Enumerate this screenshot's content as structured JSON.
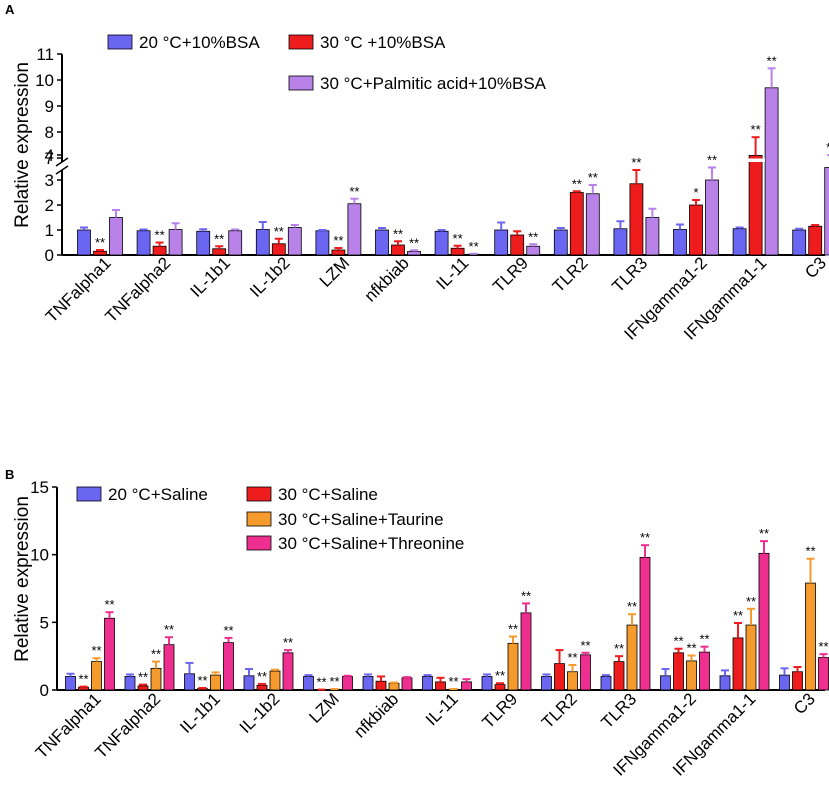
{
  "colors": {
    "blue": "#6a66f2",
    "red": "#ee1c1c",
    "purple": "#b882e8",
    "orange": "#f59a2c",
    "pink": "#ef2f8f"
  },
  "chart_data": [
    {
      "type": "bar",
      "panel": "A",
      "ylabel": "Relative expression",
      "xlabel": "",
      "y_axis_break": {
        "lower_range": [
          0,
          4
        ],
        "upper_range": [
          7,
          11
        ]
      },
      "yticks_lower": [
        "0",
        "1",
        "2",
        "3",
        "4"
      ],
      "yticks_upper": [
        "7",
        "8",
        "9",
        "10",
        "11"
      ],
      "categories": [
        "TNFalpha1",
        "TNFalpha2",
        "IL-1b1",
        "IL-1b2",
        "LZM",
        "nfkbiab",
        "IL-11",
        "TLR9",
        "TLR2",
        "TLR3",
        "IFNgamma1-2",
        "IFNgamma1-1",
        "C3"
      ],
      "legend": {
        "placement": "top-left",
        "entries": [
          "20 °C+10%BSA",
          "30 °C +10%BSA",
          "30 °C+Palmitic acid+10%BSA"
        ]
      },
      "series": [
        {
          "name": "20 °C+10%BSA",
          "color_key": "blue",
          "values": [
            1.0,
            0.97,
            0.95,
            1.02,
            0.97,
            1.0,
            0.95,
            1.0,
            1.0,
            1.05,
            1.02,
            1.05,
            1.0
          ],
          "errors": [
            0.1,
            0.05,
            0.08,
            0.3,
            0.03,
            0.08,
            0.05,
            0.3,
            0.08,
            0.3,
            0.2,
            0.05,
            0.05
          ],
          "labels": [
            "",
            "",
            "",
            "",
            "",
            "",
            "",
            "",
            "",
            "",
            "",
            "",
            ""
          ]
        },
        {
          "name": "30 °C +10%BSA",
          "color_key": "red",
          "values": [
            0.15,
            0.35,
            0.25,
            0.45,
            0.2,
            0.4,
            0.27,
            0.8,
            2.5,
            2.85,
            2.0,
            7.1,
            1.15
          ],
          "errors": [
            0.05,
            0.15,
            0.1,
            0.2,
            0.08,
            0.15,
            0.1,
            0.15,
            0.05,
            0.55,
            0.2,
            0.7,
            0.05
          ],
          "labels": [
            "**",
            "**",
            "**",
            "**",
            "**",
            "**",
            "**",
            "",
            "**",
            "**",
            "*",
            "**",
            ""
          ]
        },
        {
          "name": "30 °C+Palmitic acid+10%BSA",
          "color_key": "purple",
          "values": [
            1.5,
            1.02,
            0.97,
            1.1,
            2.05,
            0.14,
            0.03,
            0.35,
            2.45,
            1.5,
            3.0,
            9.7,
            3.5
          ],
          "errors": [
            0.3,
            0.25,
            0.05,
            0.1,
            0.2,
            0.05,
            0.02,
            0.08,
            0.35,
            0.35,
            0.5,
            0.75,
            0.5
          ],
          "labels": [
            "",
            "",
            "",
            "",
            "**",
            "**",
            "**",
            "**",
            "**",
            "",
            "**",
            "**",
            "**"
          ]
        }
      ]
    },
    {
      "type": "bar",
      "panel": "B",
      "ylabel": "Relative expression",
      "xlabel": "",
      "ylim": [
        0,
        15
      ],
      "yticks": [
        "0",
        "5",
        "10",
        "15"
      ],
      "categories": [
        "TNFalpha1",
        "TNFalpha2",
        "IL-1b1",
        "IL-1b2",
        "LZM",
        "nfkbiab",
        "IL-11",
        "TLR9",
        "TLR2",
        "TLR3",
        "IFNgamma1-2",
        "IFNgamma1-1",
        "C3"
      ],
      "legend": {
        "placement": "top-left",
        "entries": [
          "20 °C+Saline",
          "30 °C+Saline",
          "30 °C+Saline+Taurine",
          "30 °C+Saline+Threonine"
        ]
      },
      "series": [
        {
          "name": "20 °C+Saline",
          "color_key": "blue",
          "values": [
            1.0,
            1.0,
            1.2,
            1.05,
            1.0,
            1.0,
            1.0,
            1.0,
            1.0,
            1.0,
            1.05,
            1.05,
            1.1
          ],
          "errors": [
            0.2,
            0.15,
            0.8,
            0.5,
            0.1,
            0.15,
            0.1,
            0.15,
            0.15,
            0.1,
            0.5,
            0.4,
            0.5
          ],
          "labels": [
            "",
            "",
            "",
            "",
            "",
            "",
            "",
            "",
            "",
            "",
            "",
            "",
            ""
          ]
        },
        {
          "name": "30 °C+Saline",
          "color_key": "red",
          "values": [
            0.2,
            0.3,
            0.1,
            0.35,
            0.02,
            0.65,
            0.6,
            0.4,
            1.95,
            2.1,
            2.75,
            3.85,
            1.35
          ],
          "errors": [
            0.05,
            0.1,
            0.05,
            0.1,
            0.01,
            0.35,
            0.3,
            0.1,
            1.0,
            0.4,
            0.3,
            1.1,
            0.35
          ],
          "labels": [
            "**",
            "**",
            "**",
            "**",
            "**",
            "",
            "",
            "**",
            "",
            "**",
            "**",
            "**",
            ""
          ]
        },
        {
          "name": "30 °C+Saline+Taurine",
          "color_key": "orange",
          "values": [
            2.1,
            1.6,
            1.1,
            1.4,
            0.05,
            0.5,
            0.05,
            3.45,
            1.35,
            4.8,
            2.15,
            4.8,
            7.9
          ],
          "errors": [
            0.25,
            0.5,
            0.2,
            0.1,
            0.02,
            0.05,
            0.02,
            0.5,
            0.5,
            0.8,
            0.4,
            1.2,
            1.8
          ],
          "labels": [
            "**",
            "**",
            "",
            "",
            "**",
            "",
            "**",
            "**",
            "**",
            "**",
            "**",
            "**",
            "**"
          ]
        },
        {
          "name": "30 °C+Saline+Threonine",
          "color_key": "pink",
          "values": [
            5.3,
            3.35,
            3.5,
            2.75,
            1.0,
            0.9,
            0.6,
            5.7,
            2.6,
            9.8,
            2.8,
            10.1,
            2.4
          ],
          "errors": [
            0.45,
            0.55,
            0.35,
            0.2,
            0.05,
            0.05,
            0.2,
            0.7,
            0.15,
            0.9,
            0.4,
            0.9,
            0.25
          ],
          "labels": [
            "**",
            "**",
            "**",
            "**",
            "",
            "",
            "",
            "**",
            "**",
            "**",
            "**",
            "**",
            "**"
          ]
        }
      ]
    }
  ]
}
